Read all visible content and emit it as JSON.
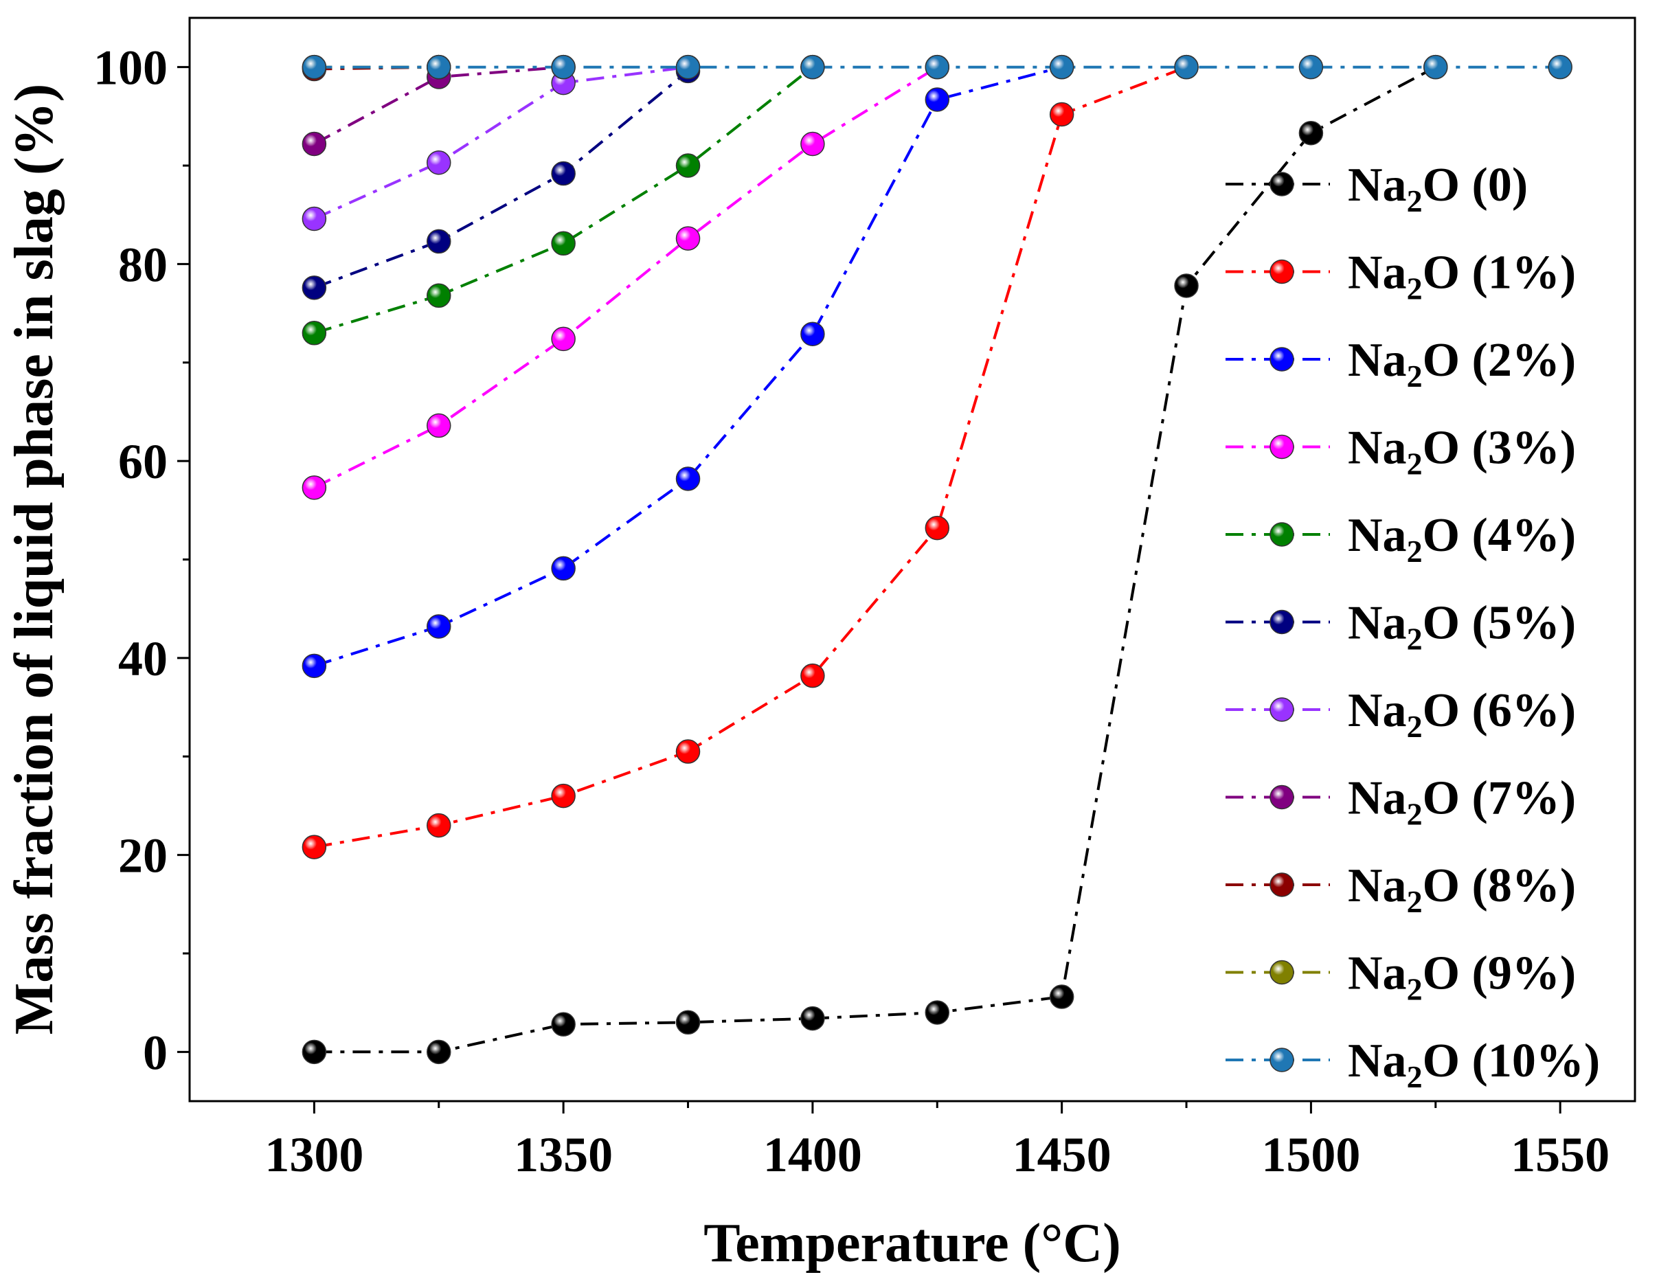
{
  "chart_data": {
    "type": "line",
    "title": "",
    "xlabel": "Temperature (°C)",
    "ylabel": "Mass fraction of liquid phase in slag (%)",
    "xlim": [
      1275,
      1565
    ],
    "ylim": [
      -5,
      105
    ],
    "xticks": [
      1300,
      1350,
      1400,
      1450,
      1500,
      1550
    ],
    "xtick_labels": [
      "1300",
      "1350",
      "1400",
      "1450",
      "1500",
      "1550"
    ],
    "yticks": [
      0,
      20,
      40,
      60,
      80,
      100
    ],
    "ytick_labels": [
      "0",
      "20",
      "40",
      "60",
      "80",
      "100"
    ],
    "grid": false,
    "legend_position": "right",
    "x": [
      1300,
      1325,
      1350,
      1375,
      1400,
      1425,
      1450,
      1475,
      1500,
      1525,
      1550
    ],
    "series": [
      {
        "name": "Na2O (0)",
        "legend_main": "Na",
        "legend_sub": "2",
        "legend_rest": "O (0)",
        "color": "#000000",
        "x": [
          1300,
          1325,
          1350,
          1375,
          1400,
          1425,
          1450,
          1475,
          1500,
          1525
        ],
        "values": [
          0,
          0,
          2.8,
          3.0,
          3.4,
          4.0,
          5.6,
          77.8,
          93.3,
          100
        ]
      },
      {
        "name": "Na2O (1%)",
        "legend_main": "Na",
        "legend_sub": "2",
        "legend_rest": "O (1%)",
        "color": "#ff0000",
        "x": [
          1300,
          1325,
          1350,
          1375,
          1400,
          1425,
          1450,
          1475
        ],
        "values": [
          20.8,
          23.0,
          26.0,
          30.5,
          38.2,
          53.2,
          95.2,
          100
        ]
      },
      {
        "name": "Na2O (2%)",
        "legend_main": "Na",
        "legend_sub": "2",
        "legend_rest": "O (2%)",
        "color": "#0000ff",
        "x": [
          1300,
          1325,
          1350,
          1375,
          1400,
          1425,
          1450
        ],
        "values": [
          39.2,
          43.2,
          49.1,
          58.2,
          72.9,
          96.7,
          100
        ]
      },
      {
        "name": "Na2O (3%)",
        "legend_main": "Na",
        "legend_sub": "2",
        "legend_rest": "O (3%)",
        "color": "#ff00ff",
        "x": [
          1300,
          1325,
          1350,
          1375,
          1400,
          1425
        ],
        "values": [
          57.3,
          63.6,
          72.4,
          82.6,
          92.2,
          100
        ]
      },
      {
        "name": "Na2O (4%)",
        "legend_main": "Na",
        "legend_sub": "2",
        "legend_rest": "O (4%)",
        "color": "#008000",
        "x": [
          1300,
          1325,
          1350,
          1375,
          1400
        ],
        "values": [
          73.0,
          76.8,
          82.1,
          90.0,
          100
        ]
      },
      {
        "name": "Na2O (5%)",
        "legend_main": "Na",
        "legend_sub": "2",
        "legend_rest": "O (5%)",
        "color": "#000080",
        "x": [
          1300,
          1325,
          1350,
          1375
        ],
        "values": [
          77.6,
          82.3,
          89.2,
          99.6
        ]
      },
      {
        "name": "Na2O (6%)",
        "legend_main": "Na",
        "legend_sub": "2",
        "legend_rest": "O (6%)",
        "color": "#9933ff",
        "x": [
          1300,
          1325,
          1350,
          1375
        ],
        "values": [
          84.6,
          90.3,
          98.4,
          100
        ]
      },
      {
        "name": "Na2O (7%)",
        "legend_main": "Na",
        "legend_sub": "2",
        "legend_rest": "O (7%)",
        "color": "#800080",
        "x": [
          1300,
          1325,
          1350
        ],
        "values": [
          92.2,
          99.0,
          100
        ]
      },
      {
        "name": "Na2O (8%)",
        "legend_main": "Na",
        "legend_sub": "2",
        "legend_rest": "O (8%)",
        "color": "#8b0000",
        "x": [
          1300,
          1325
        ],
        "values": [
          99.8,
          100
        ]
      },
      {
        "name": "Na2O (9%)",
        "legend_main": "Na",
        "legend_sub": "2",
        "legend_rest": "O (9%)",
        "color": "#808000",
        "x": [
          1300,
          1325
        ],
        "values": [
          100,
          100
        ]
      },
      {
        "name": "Na2O (10%)",
        "legend_main": "Na",
        "legend_sub": "2",
        "legend_rest": "O (10%)",
        "color": "#1f77b4",
        "x": [
          1300,
          1325,
          1350,
          1375,
          1400,
          1425,
          1450,
          1475,
          1500,
          1525,
          1550
        ],
        "values": [
          100,
          100,
          100,
          100,
          100,
          100,
          100,
          100,
          100,
          100,
          100
        ]
      }
    ]
  }
}
